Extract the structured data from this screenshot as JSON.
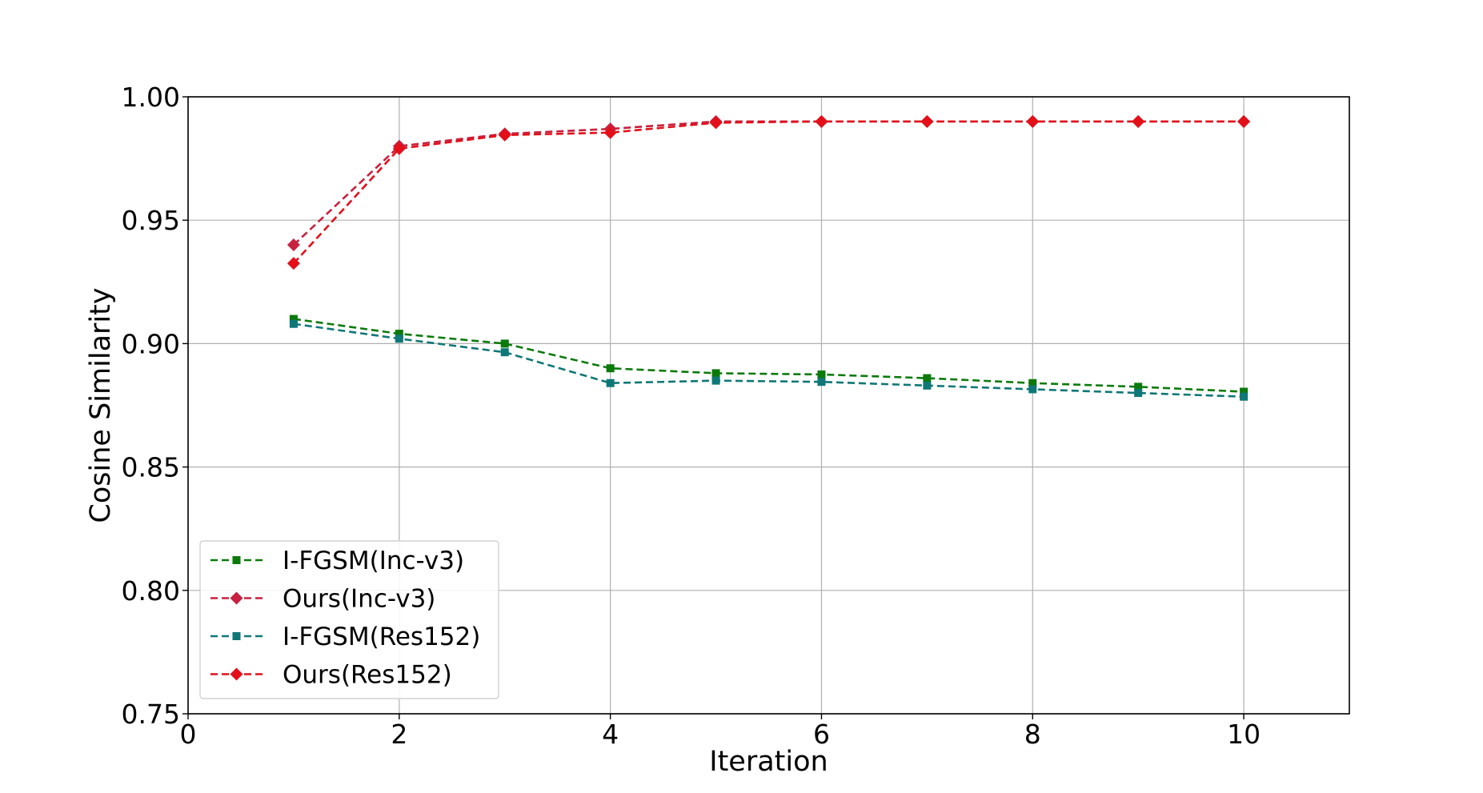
{
  "chart_data": {
    "type": "line",
    "title": "",
    "xlabel": "Iteration",
    "ylabel": "Cosine Similarity",
    "xlim": [
      0,
      11
    ],
    "ylim": [
      0.75,
      1.0
    ],
    "xticks": [
      0,
      2,
      4,
      6,
      8,
      10
    ],
    "yticks": [
      0.75,
      0.8,
      0.85,
      0.9,
      0.95,
      1.0
    ],
    "xtick_labels": [
      "0",
      "2",
      "4",
      "6",
      "8",
      "10"
    ],
    "ytick_labels": [
      "0.75",
      "0.80",
      "0.85",
      "0.90",
      "0.95",
      "1.00"
    ],
    "grid": true,
    "legend_position": "lower-left",
    "x": [
      1,
      2,
      3,
      4,
      5,
      6,
      7,
      8,
      9,
      10
    ],
    "series": [
      {
        "name": "I-FGSM(Inc-v3)",
        "color": "#0b7a0b",
        "marker": "square",
        "values": [
          0.91,
          0.904,
          0.9,
          0.89,
          0.888,
          0.8875,
          0.886,
          0.884,
          0.8825,
          0.8805
        ]
      },
      {
        "name": "Ours(Inc-v3)",
        "color": "#c8203f",
        "marker": "diamond",
        "values": [
          0.94,
          0.98,
          0.985,
          0.987,
          0.99,
          0.99,
          0.99,
          0.99,
          0.99,
          0.99
        ]
      },
      {
        "name": "I-FGSM(Res152)",
        "color": "#0f7777",
        "marker": "square",
        "values": [
          0.908,
          0.902,
          0.8965,
          0.884,
          0.885,
          0.8845,
          0.883,
          0.8815,
          0.88,
          0.8785
        ]
      },
      {
        "name": "Ours(Res152)",
        "color": "#e3101a",
        "marker": "diamond",
        "values": [
          0.9325,
          0.979,
          0.9845,
          0.9855,
          0.9895,
          0.99,
          0.99,
          0.99,
          0.99,
          0.99
        ]
      }
    ]
  }
}
